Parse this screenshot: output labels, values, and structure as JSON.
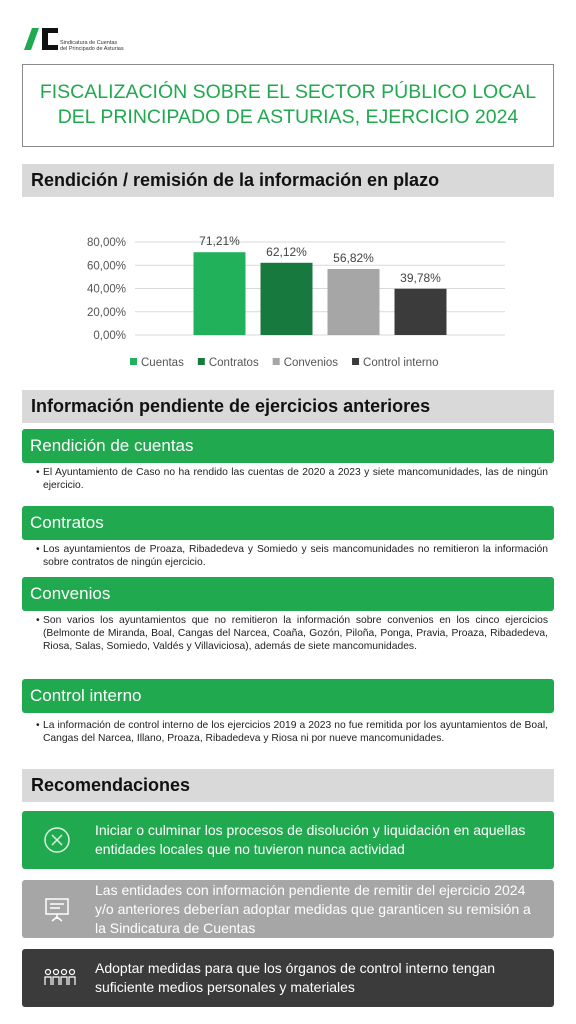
{
  "header": {
    "logo_text": [
      "Sindicatura de Cuentas",
      "del Principado de Asturias"
    ]
  },
  "title": [
    "FISCALIZACIÓN SOBRE EL SECTOR PÚBLICO LOCAL",
    "DEL PRINCIPADO DE ASTURIAS, EJERCICIO 2024"
  ],
  "section_in_time": {
    "heading": "Rendición / remisión de la información en plazo"
  },
  "chart_data": {
    "type": "bar",
    "categories": [
      null
    ],
    "series": [
      {
        "name": "Cuentas",
        "color": "#21b15b",
        "values": [
          71.21
        ],
        "value_labels": [
          "71,21%"
        ]
      },
      {
        "name": "Contratos",
        "color": "#17793e",
        "values": [
          62.12
        ],
        "value_labels": [
          "62,12%"
        ]
      },
      {
        "name": "Convenios",
        "color": "#a6a6a6",
        "values": [
          56.82
        ],
        "value_labels": [
          "56,82%"
        ]
      },
      {
        "name": "Control interno",
        "color": "#3b3b3b",
        "values": [
          39.78
        ],
        "value_labels": [
          "39,78%"
        ]
      }
    ],
    "ylim": [
      0,
      80
    ],
    "yticks": [
      {
        "value": 0,
        "label": "0,00%"
      },
      {
        "value": 20,
        "label": "20,00%"
      },
      {
        "value": 40,
        "label": "40,00%"
      },
      {
        "value": 60,
        "label": "60,00%"
      },
      {
        "value": 80,
        "label": "80,00%"
      }
    ],
    "grid": true,
    "legend": "bottom"
  },
  "section_pending": {
    "heading": "Información pendiente de ejercicios anteriores",
    "items": [
      {
        "title": "Rendición de cuentas",
        "text": "El Ayuntamiento de Caso no ha rendido las cuentas de 2020 a 2023 y siete mancomunidades, las de ningún ejercicio."
      },
      {
        "title": "Contratos",
        "text": "Los ayuntamientos de Proaza, Ribadedeva y Somiedo y seis mancomunidades no remitieron la información sobre contratos de ningún ejercicio."
      },
      {
        "title": "Convenios",
        "text": "Son varios los ayuntamientos que no remitieron la información sobre convenios en los cinco ejercicios (Belmonte de Miranda, Boal, Cangas del Narcea, Coaña, Gozón, Piloña, Ponga, Pravia, Proaza, Ribadedeva, Riosa, Salas, Somiedo, Valdés y Villaviciosa), además de siete mancomunidades."
      },
      {
        "title": "Control interno",
        "text": "La información de control interno de los ejercicios 2019 a 2023 no fue remitida por los ayuntamientos de Boal, Cangas del Narcea, Illano, Proaza, Ribadedeva y Riosa ni por nueve mancomunidades."
      }
    ]
  },
  "section_recommendations": {
    "heading": "Recomendaciones",
    "items": [
      "Iniciar o culminar los procesos de disolución y liquidación en aquellas entidades locales que no tuvieron nunca actividad",
      "Las entidades con información pendiente de remitir del ejercicio 2024 y/o anteriores deberían adoptar medidas que garanticen su remisión a la Sindicatura de Cuentas",
      "Adoptar medidas para que los órganos de control interno tengan suficiente medios personales y materiales"
    ]
  }
}
